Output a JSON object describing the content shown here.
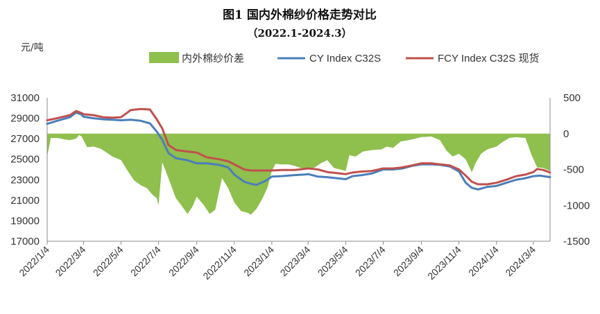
{
  "chart_data": {
    "type": "line+area",
    "title": "图1 国内外棉纱价格走势对比",
    "subtitle": "（2022.1-2024.3）",
    "y_unit": "元/吨",
    "y_left": {
      "min": 17000,
      "max": 31000,
      "ticks": [
        17000,
        19000,
        21000,
        23000,
        25000,
        27000,
        29000,
        31000
      ]
    },
    "y_right": {
      "min": -1500,
      "max": 500,
      "ticks": [
        -1500,
        -1000,
        -500,
        0,
        500
      ]
    },
    "x_ticks": [
      "2022/1/4",
      "2022/3/4",
      "2022/5/4",
      "2022/7/4",
      "2022/9/4",
      "2022/11/4",
      "2023/1/4",
      "2023/3/4",
      "2023/5/4",
      "2023/7/4",
      "2023/9/4",
      "2023/11/4",
      "2024/1/4",
      "2024/3/4"
    ],
    "x_range": [
      "2022/1/4",
      "2024/3/31"
    ],
    "colors": {
      "spread": "#8fbf4d",
      "cy": "#4a7ebb",
      "fcy": "#c0504d"
    },
    "series": [
      {
        "name": "内外棉纱价差",
        "axis": "right",
        "style": "area",
        "points": [
          [
            "2022/1/4",
            -320
          ],
          [
            "2022/1/10",
            -60
          ],
          [
            "2022/1/20",
            -60
          ],
          [
            "2022/2/1",
            -80
          ],
          [
            "2022/2/10",
            -90
          ],
          [
            "2022/2/20",
            -70
          ],
          [
            "2022/2/25",
            -20
          ],
          [
            "2022/3/1",
            -40
          ],
          [
            "2022/3/10",
            -190
          ],
          [
            "2022/3/20",
            -180
          ],
          [
            "2022/4/1",
            -210
          ],
          [
            "2022/4/10",
            -260
          ],
          [
            "2022/4/20",
            -320
          ],
          [
            "2022/5/4",
            -370
          ],
          [
            "2022/5/15",
            -520
          ],
          [
            "2022/5/25",
            -650
          ],
          [
            "2022/6/5",
            -720
          ],
          [
            "2022/6/15",
            -760
          ],
          [
            "2022/6/25",
            -860
          ],
          [
            "2022/7/1",
            -900
          ],
          [
            "2022/7/4",
            -1000
          ],
          [
            "2022/7/10",
            -400
          ],
          [
            "2022/7/20",
            -620
          ],
          [
            "2022/8/1",
            -900
          ],
          [
            "2022/8/10",
            -1000
          ],
          [
            "2022/8/20",
            -1120
          ],
          [
            "2022/8/28",
            -1020
          ],
          [
            "2022/9/4",
            -880
          ],
          [
            "2022/9/15",
            -990
          ],
          [
            "2022/9/25",
            -1120
          ],
          [
            "2022/10/4",
            -1060
          ],
          [
            "2022/10/15",
            -620
          ],
          [
            "2022/10/25",
            -760
          ],
          [
            "2022/11/4",
            -960
          ],
          [
            "2022/11/15",
            -1080
          ],
          [
            "2022/11/25",
            -1100
          ],
          [
            "2022/12/1",
            -1130
          ],
          [
            "2022/12/10",
            -1050
          ],
          [
            "2022/12/20",
            -900
          ],
          [
            "2022/12/28",
            -750
          ],
          [
            "2023/1/4",
            -520
          ],
          [
            "2023/1/10",
            -420
          ],
          [
            "2023/1/20",
            -430
          ],
          [
            "2023/2/1",
            -430
          ],
          [
            "2023/2/10",
            -450
          ],
          [
            "2023/2/20",
            -480
          ],
          [
            "2023/3/4",
            -500
          ],
          [
            "2023/3/15",
            -470
          ],
          [
            "2023/3/25",
            -410
          ],
          [
            "2023/4/4",
            -370
          ],
          [
            "2023/4/15",
            -480
          ],
          [
            "2023/4/25",
            -500
          ],
          [
            "2023/5/4",
            -520
          ],
          [
            "2023/5/10",
            -300
          ],
          [
            "2023/5/20",
            -320
          ],
          [
            "2023/6/1",
            -250
          ],
          [
            "2023/6/15",
            -230
          ],
          [
            "2023/7/1",
            -220
          ],
          [
            "2023/7/10",
            -180
          ],
          [
            "2023/7/20",
            -200
          ],
          [
            "2023/8/1",
            -110
          ],
          [
            "2023/8/15",
            -90
          ],
          [
            "2023/9/4",
            -50
          ],
          [
            "2023/9/20",
            -40
          ],
          [
            "2023/10/4",
            -90
          ],
          [
            "2023/10/15",
            -240
          ],
          [
            "2023/10/25",
            -320
          ],
          [
            "2023/11/4",
            -280
          ],
          [
            "2023/11/15",
            -360
          ],
          [
            "2023/11/25",
            -540
          ],
          [
            "2023/12/1",
            -410
          ],
          [
            "2023/12/10",
            -280
          ],
          [
            "2023/12/20",
            -220
          ],
          [
            "2024/1/4",
            -180
          ],
          [
            "2024/1/15",
            -110
          ],
          [
            "2024/1/25",
            -60
          ],
          [
            "2024/2/5",
            -50
          ],
          [
            "2024/2/20",
            -60
          ],
          [
            "2024/3/1",
            -300
          ],
          [
            "2024/3/10",
            -470
          ],
          [
            "2024/3/20",
            -480
          ],
          [
            "2024/3/31",
            -520
          ]
        ]
      },
      {
        "name": "CY Index C32S",
        "axis": "left",
        "style": "line",
        "points": [
          [
            "2022/1/4",
            28450
          ],
          [
            "2022/1/20",
            28750
          ],
          [
            "2022/2/10",
            29100
          ],
          [
            "2022/2/20",
            29550
          ],
          [
            "2022/3/1",
            29350
          ],
          [
            "2022/3/4",
            29150
          ],
          [
            "2022/3/20",
            29000
          ],
          [
            "2022/4/5",
            28900
          ],
          [
            "2022/4/20",
            28850
          ],
          [
            "2022/5/4",
            28800
          ],
          [
            "2022/5/20",
            28850
          ],
          [
            "2022/6/5",
            28750
          ],
          [
            "2022/6/20",
            28500
          ],
          [
            "2022/7/1",
            27700
          ],
          [
            "2022/7/10",
            26900
          ],
          [
            "2022/7/20",
            25600
          ],
          [
            "2022/8/1",
            25100
          ],
          [
            "2022/8/20",
            24900
          ],
          [
            "2022/9/4",
            24600
          ],
          [
            "2022/9/20",
            24600
          ],
          [
            "2022/10/10",
            24450
          ],
          [
            "2022/10/25",
            24200
          ],
          [
            "2022/11/4",
            23500
          ],
          [
            "2022/11/20",
            22800
          ],
          [
            "2022/12/1",
            22600
          ],
          [
            "2022/12/10",
            22500
          ],
          [
            "2022/12/25",
            22900
          ],
          [
            "2023/1/4",
            23300
          ],
          [
            "2023/1/20",
            23350
          ],
          [
            "2023/2/10",
            23450
          ],
          [
            "2023/2/25",
            23500
          ],
          [
            "2023/3/4",
            23550
          ],
          [
            "2023/3/20",
            23300
          ],
          [
            "2023/4/4",
            23250
          ],
          [
            "2023/4/20",
            23150
          ],
          [
            "2023/5/4",
            23050
          ],
          [
            "2023/5/15",
            23350
          ],
          [
            "2023/5/30",
            23450
          ],
          [
            "2023/6/15",
            23600
          ],
          [
            "2023/7/4",
            24000
          ],
          [
            "2023/7/20",
            24000
          ],
          [
            "2023/8/4",
            24100
          ],
          [
            "2023/8/20",
            24350
          ],
          [
            "2023/9/4",
            24500
          ],
          [
            "2023/9/20",
            24500
          ],
          [
            "2023/10/4",
            24450
          ],
          [
            "2023/10/20",
            24300
          ],
          [
            "2023/11/4",
            23800
          ],
          [
            "2023/11/15",
            22700
          ],
          [
            "2023/11/25",
            22200
          ],
          [
            "2023/12/5",
            22050
          ],
          [
            "2023/12/20",
            22300
          ],
          [
            "2024/1/4",
            22400
          ],
          [
            "2024/1/20",
            22700
          ],
          [
            "2024/2/5",
            23000
          ],
          [
            "2024/2/20",
            23150
          ],
          [
            "2024/3/4",
            23350
          ],
          [
            "2024/3/15",
            23400
          ],
          [
            "2024/3/31",
            23250
          ]
        ]
      },
      {
        "name": "FCY Index C32S 现货",
        "axis": "left",
        "style": "line",
        "points": [
          [
            "2022/1/4",
            28800
          ],
          [
            "2022/1/20",
            29000
          ],
          [
            "2022/2/10",
            29300
          ],
          [
            "2022/2/20",
            29700
          ],
          [
            "2022/3/1",
            29500
          ],
          [
            "2022/3/4",
            29400
          ],
          [
            "2022/3/20",
            29300
          ],
          [
            "2022/4/5",
            29100
          ],
          [
            "2022/4/20",
            29050
          ],
          [
            "2022/5/4",
            29100
          ],
          [
            "2022/5/20",
            29800
          ],
          [
            "2022/6/5",
            29900
          ],
          [
            "2022/6/20",
            29850
          ],
          [
            "2022/7/1",
            28900
          ],
          [
            "2022/7/10",
            28000
          ],
          [
            "2022/7/20",
            26400
          ],
          [
            "2022/8/1",
            25900
          ],
          [
            "2022/8/20",
            25750
          ],
          [
            "2022/9/4",
            25650
          ],
          [
            "2022/9/20",
            25200
          ],
          [
            "2022/10/10",
            25000
          ],
          [
            "2022/10/25",
            24800
          ],
          [
            "2022/11/4",
            24500
          ],
          [
            "2022/11/20",
            24000
          ],
          [
            "2022/12/1",
            23900
          ],
          [
            "2022/12/15",
            23900
          ],
          [
            "2023/1/4",
            23900
          ],
          [
            "2023/1/20",
            23950
          ],
          [
            "2023/2/10",
            23950
          ],
          [
            "2023/2/25",
            24050
          ],
          [
            "2023/3/4",
            24100
          ],
          [
            "2023/3/20",
            24000
          ],
          [
            "2023/4/4",
            23750
          ],
          [
            "2023/4/20",
            23650
          ],
          [
            "2023/5/4",
            23550
          ],
          [
            "2023/5/15",
            23700
          ],
          [
            "2023/5/30",
            23800
          ],
          [
            "2023/6/15",
            23850
          ],
          [
            "2023/7/4",
            24100
          ],
          [
            "2023/7/20",
            24100
          ],
          [
            "2023/8/4",
            24200
          ],
          [
            "2023/8/20",
            24400
          ],
          [
            "2023/9/4",
            24600
          ],
          [
            "2023/9/20",
            24600
          ],
          [
            "2023/10/4",
            24500
          ],
          [
            "2023/10/20",
            24400
          ],
          [
            "2023/11/4",
            24000
          ],
          [
            "2023/11/15",
            23400
          ],
          [
            "2023/11/25",
            22800
          ],
          [
            "2023/12/5",
            22550
          ],
          [
            "2023/12/20",
            22550
          ],
          [
            "2024/1/4",
            22700
          ],
          [
            "2024/1/20",
            23000
          ],
          [
            "2024/2/5",
            23350
          ],
          [
            "2024/2/20",
            23500
          ],
          [
            "2024/3/4",
            23750
          ],
          [
            "2024/3/10",
            24050
          ],
          [
            "2024/3/20",
            23950
          ],
          [
            "2024/3/31",
            23700
          ]
        ]
      }
    ]
  }
}
